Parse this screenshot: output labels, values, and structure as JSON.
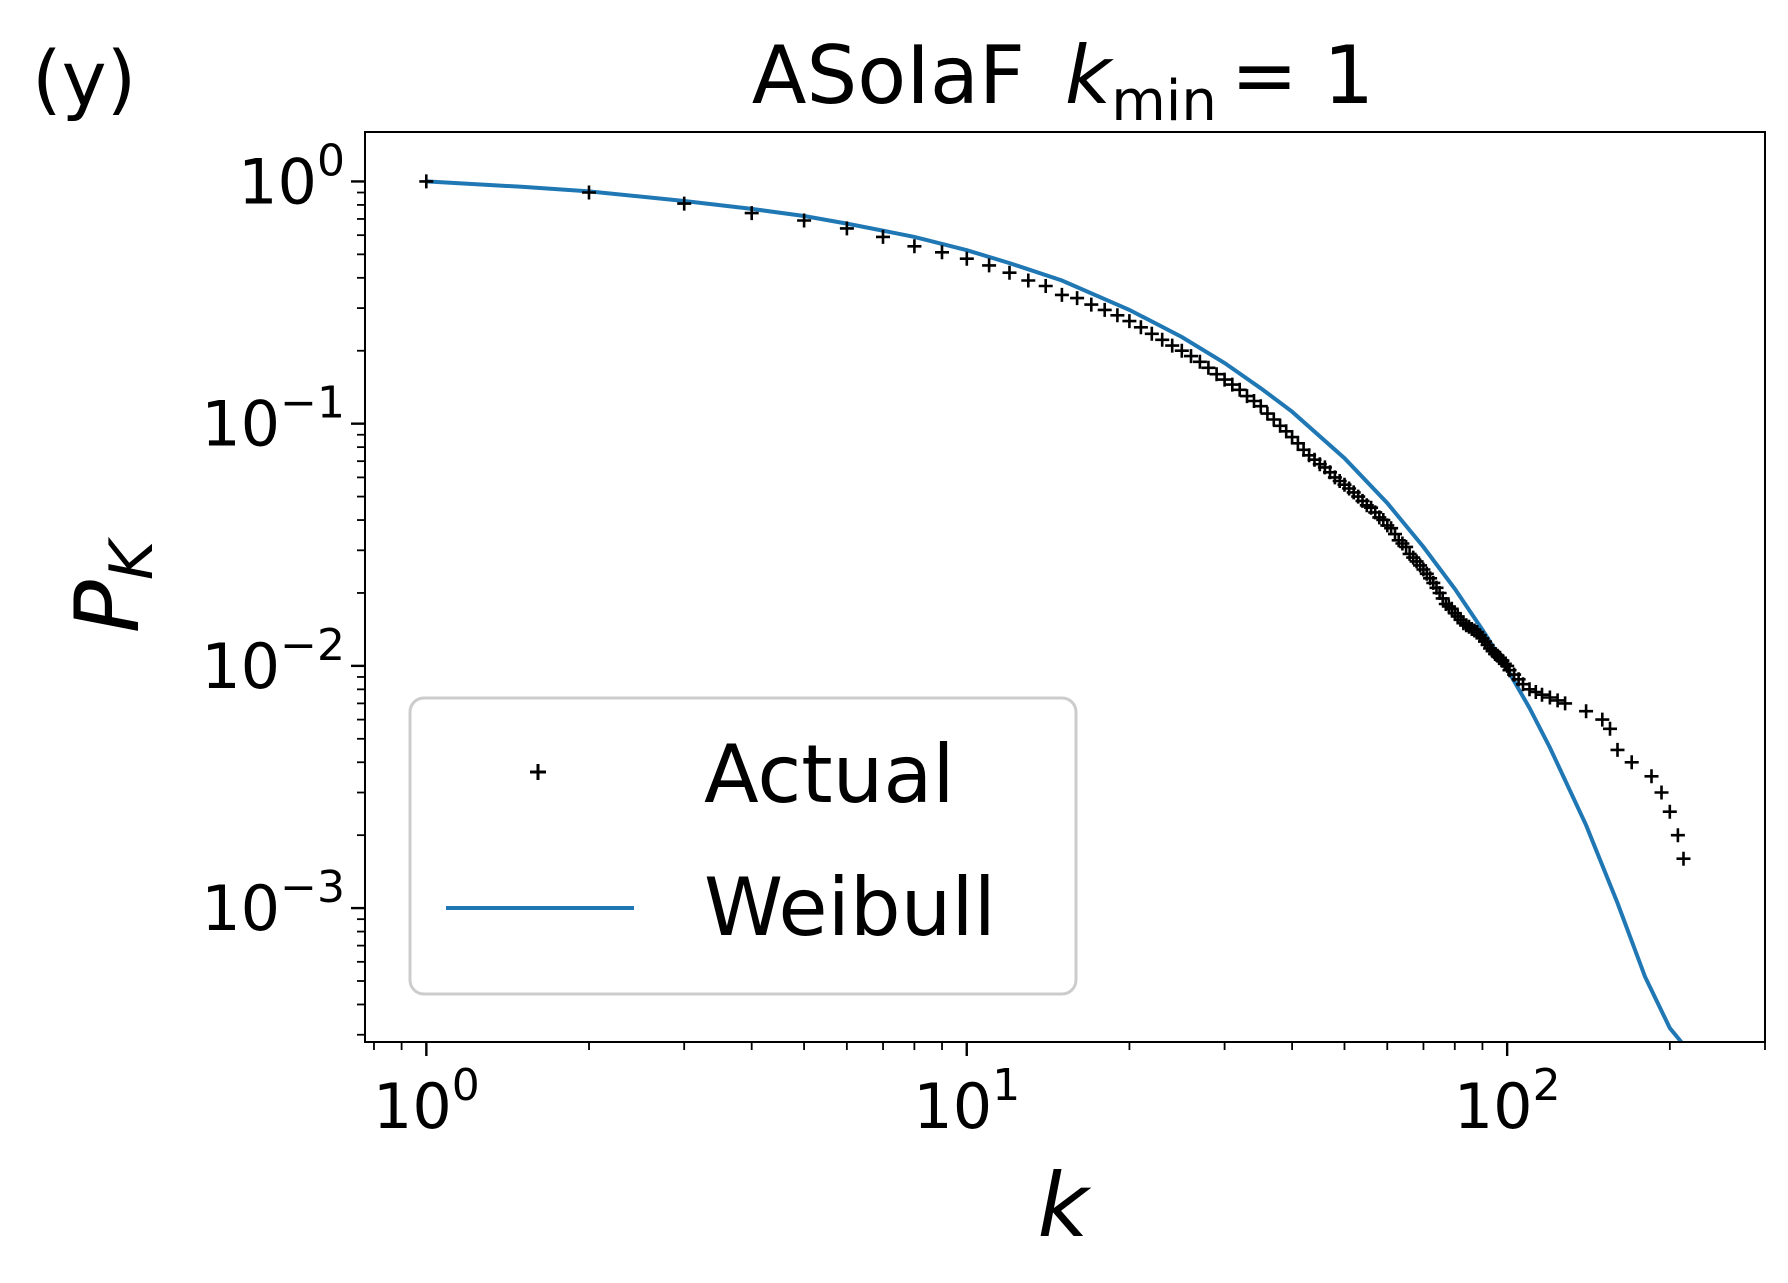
{
  "panel_label": "(y)",
  "title": {
    "main": "ASoIaF",
    "var": "k",
    "sub": "min",
    "rhs": "= 1"
  },
  "chart_data": {
    "type": "scatter",
    "scale": {
      "x": "log",
      "y": "log"
    },
    "xlabel": "k",
    "ylabel": {
      "base": "P",
      "sub": "K"
    },
    "xlim": [
      0.77,
      300
    ],
    "ylim": [
      0.00028,
      1.6
    ],
    "x_ticks": [
      {
        "value": 1,
        "base": "10",
        "exp": "0"
      },
      {
        "value": 10,
        "base": "10",
        "exp": "1"
      },
      {
        "value": 100,
        "base": "10",
        "exp": "2"
      }
    ],
    "y_ticks": [
      {
        "value": 1,
        "base": "10",
        "exp": "0"
      },
      {
        "value": 0.1,
        "base": "10",
        "exp": "−1"
      },
      {
        "value": 0.01,
        "base": "10",
        "exp": "−2"
      },
      {
        "value": 0.001,
        "base": "10",
        "exp": "−3"
      }
    ],
    "grid": false,
    "legend": {
      "position": "lower-left",
      "entries": [
        {
          "label": "Actual",
          "marker": "plus",
          "color": "#000000"
        },
        {
          "label": "Weibull",
          "marker": "line",
          "color": "#1f77b4"
        }
      ]
    },
    "series": [
      {
        "name": "Actual",
        "kind": "scatter",
        "marker": "plus",
        "color": "#000000",
        "x": [
          1,
          2,
          3,
          4,
          5,
          6,
          7,
          8,
          9,
          10,
          11,
          12,
          13,
          14,
          15,
          16,
          17,
          18,
          19,
          20,
          21,
          22,
          23,
          24,
          25,
          26,
          27,
          28,
          29,
          30,
          31,
          32,
          33,
          34,
          35,
          36,
          37,
          38,
          39,
          40,
          41,
          42,
          43,
          44,
          45,
          46,
          47,
          48,
          49,
          50,
          51,
          52,
          53,
          54,
          55,
          56,
          57,
          58,
          59,
          60,
          61,
          62,
          63,
          64,
          65,
          66,
          67,
          68,
          69,
          70,
          71,
          72,
          73,
          74,
          75,
          76,
          77,
          78,
          79,
          80,
          81,
          82,
          83,
          84,
          85,
          86,
          87,
          88,
          89,
          90,
          91,
          92,
          93,
          94,
          95,
          96,
          97,
          98,
          99,
          100,
          101,
          103,
          105,
          107,
          110,
          113,
          116,
          120,
          124,
          128,
          140,
          150,
          155,
          160,
          170,
          185,
          193,
          200,
          207,
          212
        ],
        "y": [
          1.0,
          0.9,
          0.81,
          0.74,
          0.69,
          0.64,
          0.59,
          0.54,
          0.51,
          0.48,
          0.45,
          0.42,
          0.39,
          0.37,
          0.34,
          0.33,
          0.31,
          0.295,
          0.28,
          0.265,
          0.25,
          0.235,
          0.222,
          0.21,
          0.2,
          0.19,
          0.18,
          0.17,
          0.16,
          0.152,
          0.145,
          0.138,
          0.13,
          0.124,
          0.118,
          0.11,
          0.104,
          0.098,
          0.093,
          0.088,
          0.083,
          0.078,
          0.074,
          0.071,
          0.068,
          0.066,
          0.063,
          0.06,
          0.058,
          0.056,
          0.054,
          0.052,
          0.05,
          0.048,
          0.046,
          0.045,
          0.043,
          0.041,
          0.04,
          0.038,
          0.037,
          0.035,
          0.033,
          0.032,
          0.031,
          0.029,
          0.028,
          0.027,
          0.026,
          0.025,
          0.024,
          0.023,
          0.022,
          0.021,
          0.02,
          0.019,
          0.018,
          0.0176,
          0.0172,
          0.0165,
          0.016,
          0.0155,
          0.015,
          0.0147,
          0.0145,
          0.0142,
          0.014,
          0.0138,
          0.0134,
          0.013,
          0.0126,
          0.0122,
          0.0118,
          0.0115,
          0.0112,
          0.011,
          0.0108,
          0.0105,
          0.0102,
          0.01,
          0.0096,
          0.0092,
          0.0088,
          0.0084,
          0.008,
          0.0078,
          0.0076,
          0.0074,
          0.0072,
          0.007,
          0.0065,
          0.006,
          0.0055,
          0.0045,
          0.004,
          0.0035,
          0.003,
          0.0025,
          0.002,
          0.0016
        ]
      },
      {
        "name": "Weibull",
        "kind": "line",
        "color": "#1f77b4",
        "x": [
          1,
          1.5,
          2,
          3,
          4,
          5,
          6,
          8,
          10,
          12,
          15,
          20,
          25,
          30,
          35,
          40,
          50,
          60,
          70,
          80,
          90,
          100,
          110,
          120,
          140,
          160,
          180,
          200,
          210
        ],
        "y": [
          1.0,
          0.95,
          0.91,
          0.83,
          0.77,
          0.72,
          0.67,
          0.59,
          0.52,
          0.46,
          0.39,
          0.295,
          0.228,
          0.178,
          0.14,
          0.112,
          0.072,
          0.047,
          0.031,
          0.0208,
          0.0141,
          0.0097,
          0.0067,
          0.0046,
          0.0022,
          0.00105,
          0.00052,
          0.00032,
          0.00028
        ]
      }
    ]
  }
}
